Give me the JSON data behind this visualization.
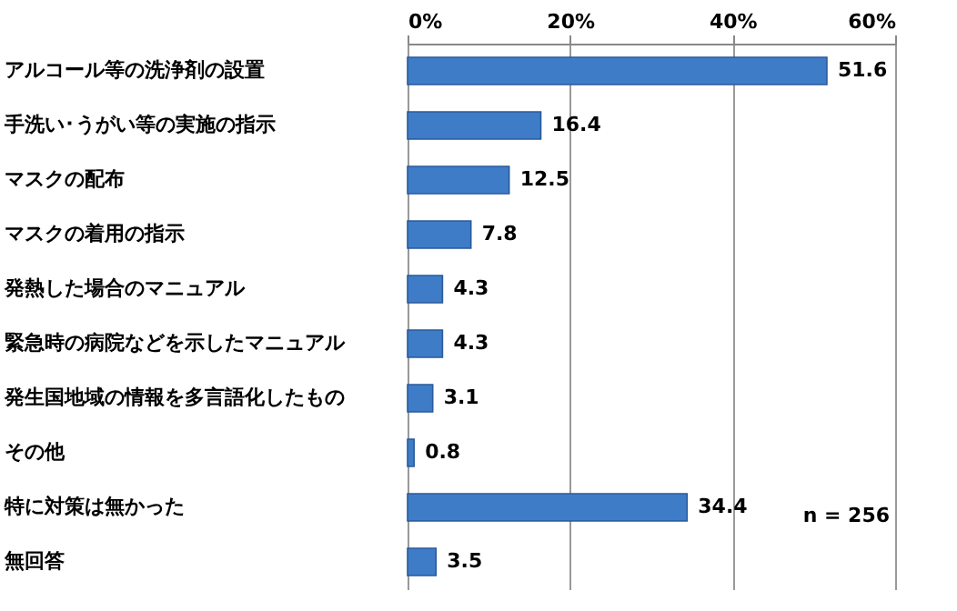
{
  "chart_data": {
    "type": "bar",
    "orientation": "horizontal",
    "categories": [
      "アルコール等の洗浄剤の設置",
      "手洗い･うがい等の実施の指示",
      "マスクの配布",
      "マスクの着用の指示",
      "発熱した場合のマニュアル",
      "緊急時の病院などを示したマニュアル",
      "発生国地域の情報を多言語化したもの",
      "その他",
      "特に対策は無かった",
      "無回答"
    ],
    "values": [
      51.6,
      16.4,
      12.5,
      7.8,
      4.3,
      4.3,
      3.1,
      0.8,
      34.4,
      3.5
    ],
    "color": "#3f7cc8",
    "xlim": [
      0,
      60
    ],
    "xticks": [
      {
        "value": 0,
        "label": "0%"
      },
      {
        "value": 20,
        "label": "20%"
      },
      {
        "value": 40,
        "label": "40%"
      },
      {
        "value": 60,
        "label": "60%"
      }
    ],
    "grid": "x",
    "data_labels": true,
    "annotations": [
      "n = 256"
    ]
  }
}
